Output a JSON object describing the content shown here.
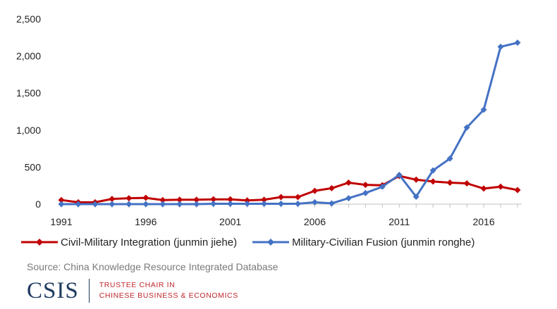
{
  "chart_data": {
    "type": "line",
    "title": "",
    "xlabel": "",
    "ylabel": "",
    "x": [
      1991,
      1992,
      1993,
      1994,
      1995,
      1996,
      1997,
      1998,
      1999,
      2000,
      2001,
      2002,
      2003,
      2004,
      2005,
      2006,
      2007,
      2008,
      2009,
      2010,
      2011,
      2012,
      2013,
      2014,
      2015,
      2016,
      2017,
      2018
    ],
    "x_tick_labels": [
      "1991",
      "1996",
      "2001",
      "2006",
      "2011",
      "2016"
    ],
    "x_tick_values": [
      1991,
      1996,
      2001,
      2006,
      2011,
      2016
    ],
    "y_tick_labels": [
      "0",
      "500",
      "1,000",
      "1,500",
      "2,000",
      "2,500"
    ],
    "y_tick_values": [
      0,
      500,
      1000,
      1500,
      2000,
      2500
    ],
    "ylim": [
      0,
      2500
    ],
    "grid": false,
    "legend_position": "bottom",
    "series": [
      {
        "name": "Civil-Military Integration (junmin jiehe)",
        "color": "#c00000",
        "marker": "diamond",
        "values": [
          55,
          25,
          25,
          70,
          80,
          85,
          55,
          60,
          60,
          65,
          65,
          50,
          60,
          95,
          95,
          180,
          215,
          290,
          260,
          255,
          380,
          330,
          305,
          290,
          280,
          210,
          235,
          190
        ]
      },
      {
        "name": "Military-Civilian Fusion (junmin ronghe)",
        "color": "#4472c4",
        "marker": "diamond",
        "values": [
          0,
          0,
          0,
          0,
          0,
          0,
          0,
          0,
          0,
          5,
          5,
          5,
          5,
          5,
          5,
          25,
          10,
          80,
          150,
          235,
          395,
          100,
          455,
          615,
          1035,
          1275,
          2125,
          2180
        ]
      }
    ]
  },
  "source_text": "Source: China Knowledge Resource Integrated Database",
  "footer": {
    "logo_text": "CSIS",
    "chair_line1": "TRUSTEE CHAIR IN",
    "chair_line2": "CHINESE BUSINESS & ECONOMICS"
  }
}
